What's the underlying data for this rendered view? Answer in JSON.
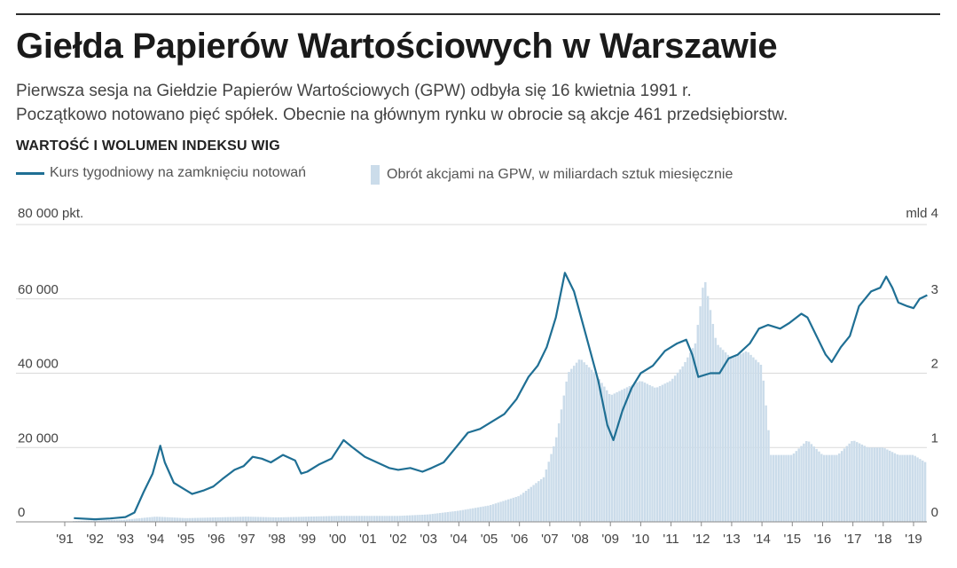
{
  "header": {
    "title": "Giełda Papierów Wartościowych w Warszawie",
    "subtitle_lines": [
      "Pierwsza sesja na Giełdzie Papierów Wartościowych (GPW) odbyła się 16 kwietnia 1991 r.",
      "Początkowo notowano pięć spółek. Obecnie na głównym rynku w obrocie są akcje 461 przedsiębiorstw."
    ]
  },
  "chart_data": {
    "type": "line",
    "title": "WARTOŚĆ I WOLUMEN INDEKSU WIG",
    "left_axis": {
      "unit_label": "80 000 pkt.",
      "ticks": [
        "0",
        "20 000",
        "40 000",
        "60 000"
      ],
      "ylim": [
        0,
        80000
      ]
    },
    "right_axis": {
      "unit_label": "mld 4",
      "ticks": [
        "0",
        "1",
        "2",
        "3"
      ],
      "ylim": [
        0,
        4
      ]
    },
    "x_tick_labels": [
      "'91",
      "'92",
      "'93",
      "'94",
      "'95",
      "'96",
      "'97",
      "'98",
      "'99",
      "'00",
      "'01",
      "'02",
      "'03",
      "'04",
      "'05",
      "'06",
      "'07",
      "'08",
      "'09",
      "'10",
      "'11",
      "'12",
      "'13",
      "'14",
      "'15",
      "'16",
      "'17",
      "'18",
      "'19"
    ],
    "xlim": [
      1991.0,
      2019.6
    ],
    "legend_placement": "top-left",
    "grid": "horizontal",
    "series": [
      {
        "name": "Kurs tygodniowy na zamknięciu notowań",
        "axis": "left",
        "color": "#1f6f94",
        "points": [
          [
            1991.3,
            1000
          ],
          [
            1992.0,
            700
          ],
          [
            1992.5,
            900
          ],
          [
            1993.0,
            1300
          ],
          [
            1993.3,
            2500
          ],
          [
            1993.6,
            8000
          ],
          [
            1993.9,
            13000
          ],
          [
            1994.15,
            20500
          ],
          [
            1994.3,
            16000
          ],
          [
            1994.6,
            10500
          ],
          [
            1994.9,
            9000
          ],
          [
            1995.2,
            7500
          ],
          [
            1995.6,
            8500
          ],
          [
            1995.9,
            9500
          ],
          [
            1996.2,
            11500
          ],
          [
            1996.6,
            14000
          ],
          [
            1996.9,
            15000
          ],
          [
            1997.2,
            17500
          ],
          [
            1997.5,
            17000
          ],
          [
            1997.8,
            16000
          ],
          [
            1998.2,
            18000
          ],
          [
            1998.6,
            16500
          ],
          [
            1998.8,
            13000
          ],
          [
            1999.0,
            13500
          ],
          [
            1999.4,
            15500
          ],
          [
            1999.8,
            17000
          ],
          [
            2000.2,
            22000
          ],
          [
            2000.5,
            20000
          ],
          [
            2000.9,
            17500
          ],
          [
            2001.3,
            16000
          ],
          [
            2001.7,
            14500
          ],
          [
            2002.0,
            14000
          ],
          [
            2002.4,
            14500
          ],
          [
            2002.8,
            13500
          ],
          [
            2003.1,
            14500
          ],
          [
            2003.5,
            16000
          ],
          [
            2003.9,
            20000
          ],
          [
            2004.3,
            24000
          ],
          [
            2004.7,
            25000
          ],
          [
            2005.1,
            27000
          ],
          [
            2005.5,
            29000
          ],
          [
            2005.9,
            33000
          ],
          [
            2006.3,
            39000
          ],
          [
            2006.6,
            42000
          ],
          [
            2006.9,
            47000
          ],
          [
            2007.2,
            55000
          ],
          [
            2007.5,
            67000
          ],
          [
            2007.8,
            62000
          ],
          [
            2008.2,
            50000
          ],
          [
            2008.6,
            38000
          ],
          [
            2008.9,
            26000
          ],
          [
            2009.1,
            22000
          ],
          [
            2009.4,
            30000
          ],
          [
            2009.7,
            36000
          ],
          [
            2010.0,
            40000
          ],
          [
            2010.4,
            42000
          ],
          [
            2010.8,
            46000
          ],
          [
            2011.2,
            48000
          ],
          [
            2011.5,
            49000
          ],
          [
            2011.7,
            45000
          ],
          [
            2011.9,
            39000
          ],
          [
            2012.3,
            40000
          ],
          [
            2012.6,
            40000
          ],
          [
            2012.9,
            44000
          ],
          [
            2013.2,
            45000
          ],
          [
            2013.6,
            48000
          ],
          [
            2013.9,
            52000
          ],
          [
            2014.2,
            53000
          ],
          [
            2014.6,
            52000
          ],
          [
            2014.9,
            53500
          ],
          [
            2015.3,
            56000
          ],
          [
            2015.5,
            55000
          ],
          [
            2015.8,
            50000
          ],
          [
            2016.1,
            45000
          ],
          [
            2016.3,
            43000
          ],
          [
            2016.6,
            47000
          ],
          [
            2016.9,
            50000
          ],
          [
            2017.2,
            58000
          ],
          [
            2017.6,
            62000
          ],
          [
            2017.9,
            63000
          ],
          [
            2018.1,
            66000
          ],
          [
            2018.3,
            63000
          ],
          [
            2018.5,
            59000
          ],
          [
            2018.8,
            58000
          ],
          [
            2019.0,
            57500
          ],
          [
            2019.2,
            60000
          ],
          [
            2019.45,
            61000
          ]
        ]
      },
      {
        "name": "Obrót akcjami na GPW, w miliardach sztuk miesięcznie",
        "axis": "right",
        "color": "#cbdcea",
        "points": [
          [
            1991.3,
            0.01
          ],
          [
            1993.0,
            0.03
          ],
          [
            1994.0,
            0.07
          ],
          [
            1995.0,
            0.05
          ],
          [
            1996.0,
            0.06
          ],
          [
            1997.0,
            0.07
          ],
          [
            1998.0,
            0.06
          ],
          [
            1999.0,
            0.07
          ],
          [
            2000.0,
            0.08
          ],
          [
            2001.0,
            0.08
          ],
          [
            2002.0,
            0.08
          ],
          [
            2003.0,
            0.1
          ],
          [
            2004.0,
            0.15
          ],
          [
            2005.0,
            0.22
          ],
          [
            2006.0,
            0.35
          ],
          [
            2006.8,
            0.6
          ],
          [
            2007.2,
            1.1
          ],
          [
            2007.6,
            2.0
          ],
          [
            2008.0,
            2.2
          ],
          [
            2008.5,
            2.0
          ],
          [
            2009.0,
            1.7
          ],
          [
            2009.5,
            1.8
          ],
          [
            2010.0,
            1.9
          ],
          [
            2010.5,
            1.8
          ],
          [
            2011.0,
            1.9
          ],
          [
            2011.4,
            2.1
          ],
          [
            2011.8,
            2.4
          ],
          [
            2012.1,
            3.3
          ],
          [
            2012.5,
            2.4
          ],
          [
            2013.0,
            2.2
          ],
          [
            2013.5,
            2.3
          ],
          [
            2014.0,
            2.1
          ],
          [
            2014.3,
            0.9
          ],
          [
            2014.7,
            0.9
          ],
          [
            2015.0,
            0.9
          ],
          [
            2015.5,
            1.1
          ],
          [
            2016.0,
            0.9
          ],
          [
            2016.5,
            0.9
          ],
          [
            2017.0,
            1.1
          ],
          [
            2017.5,
            1.0
          ],
          [
            2018.0,
            1.0
          ],
          [
            2018.5,
            0.9
          ],
          [
            2019.0,
            0.9
          ],
          [
            2019.4,
            0.8
          ]
        ]
      }
    ]
  }
}
